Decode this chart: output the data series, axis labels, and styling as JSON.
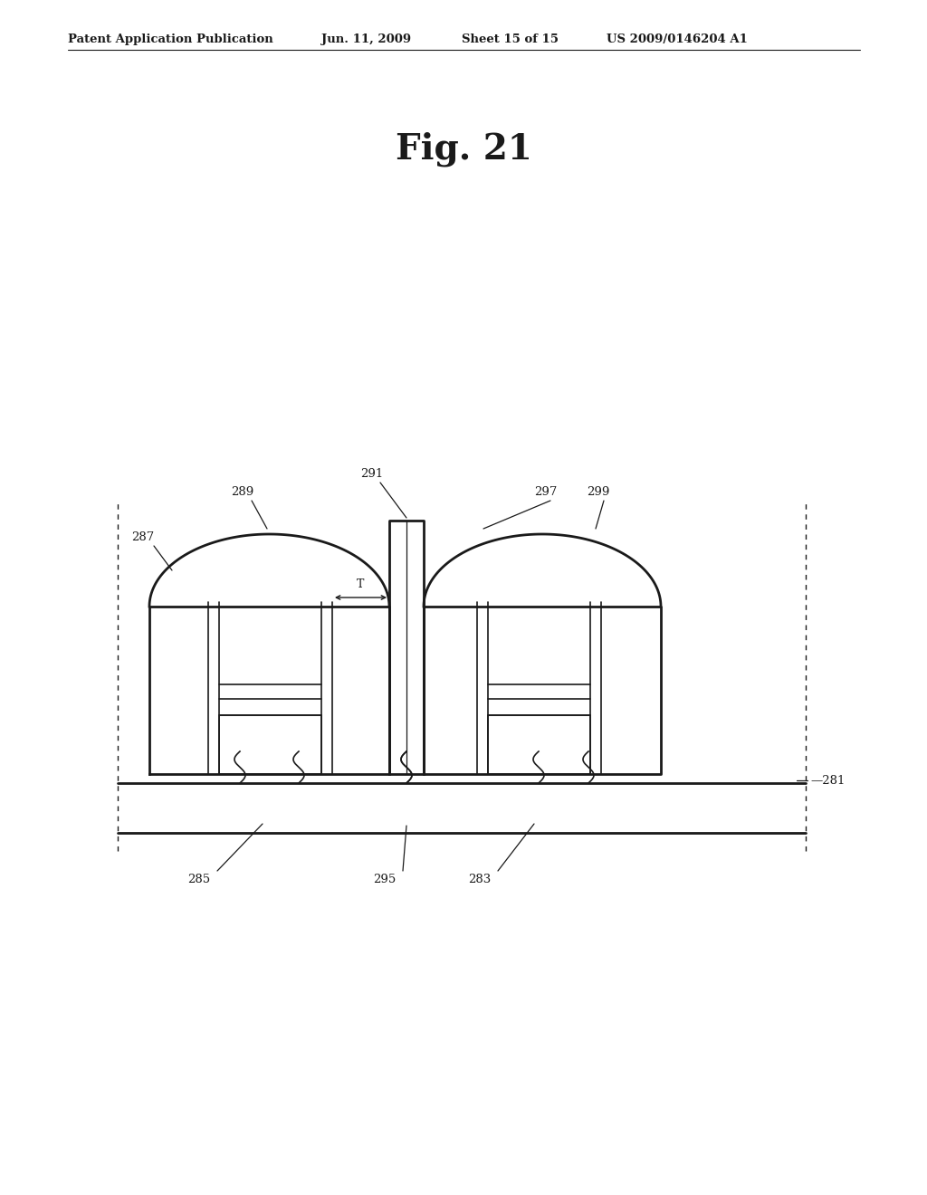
{
  "bg_color": "#ffffff",
  "header_text": "Patent Application Publication",
  "header_date": "Jun. 11, 2009",
  "header_sheet": "Sheet 15 of 15",
  "header_patent": "US 2009/0146204 A1",
  "fig_label": "Fig. 21"
}
